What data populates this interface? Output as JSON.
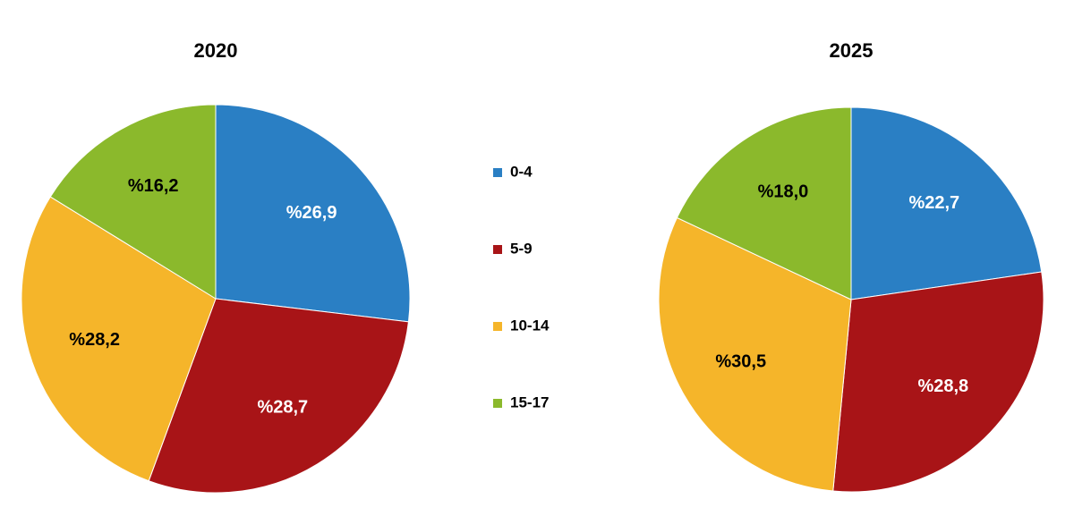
{
  "chart_data": [
    {
      "type": "pie",
      "title": "2020",
      "categories": [
        "0-4",
        "5-9",
        "10-14",
        "15-17"
      ],
      "values": [
        26.9,
        28.7,
        28.2,
        16.2
      ],
      "value_labels": [
        "%26,9",
        "%28,7",
        "%28,2",
        "%16,2"
      ],
      "colors": [
        "#2a7fc4",
        "#a81417",
        "#f5b52a",
        "#8bb92c"
      ],
      "label_colors": [
        "#ffffff",
        "#ffffff",
        "#000000",
        "#000000"
      ],
      "legend": true
    },
    {
      "type": "pie",
      "title": "2025",
      "values": [
        22.7,
        28.8,
        30.5,
        18.0
      ],
      "value_labels": [
        "%22,7",
        "%28,8",
        "%30,5",
        "%18,0"
      ],
      "colors": [
        "#2a7fc4",
        "#a81417",
        "#f5b52a",
        "#8bb92c"
      ],
      "label_colors": [
        "#ffffff",
        "#ffffff",
        "#000000",
        "#000000"
      ],
      "legend": false
    }
  ]
}
